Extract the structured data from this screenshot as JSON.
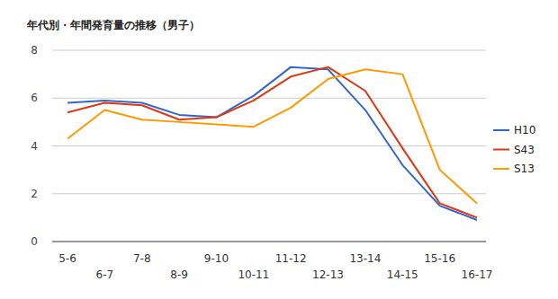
{
  "chart_data": {
    "type": "line",
    "title": "年代別・年間発育量の推移（男子）",
    "categories": [
      "5-6",
      "6-7",
      "7-8",
      "8-9",
      "9-10",
      "10-11",
      "11-12",
      "12-13",
      "13-14",
      "14-15",
      "15-16",
      "16-17"
    ],
    "series": [
      {
        "name": "H10",
        "color": "#3366cc",
        "values": [
          5.8,
          5.9,
          5.8,
          5.3,
          5.2,
          6.1,
          7.3,
          7.2,
          5.5,
          3.2,
          1.5,
          0.9
        ]
      },
      {
        "name": "S43",
        "color": "#dc3912",
        "values": [
          5.4,
          5.8,
          5.7,
          5.1,
          5.2,
          5.9,
          6.9,
          7.3,
          6.3,
          3.9,
          1.6,
          1.0
        ]
      },
      {
        "name": "S13",
        "color": "#ff9900",
        "values": [
          4.3,
          5.5,
          5.1,
          5.0,
          4.9,
          4.8,
          5.6,
          6.8,
          7.2,
          7.0,
          3.0,
          1.6
        ]
      }
    ],
    "ylim": [
      0,
      8
    ],
    "yticks": [
      0,
      2,
      4,
      6,
      8
    ],
    "grid": true,
    "legend": "right"
  }
}
